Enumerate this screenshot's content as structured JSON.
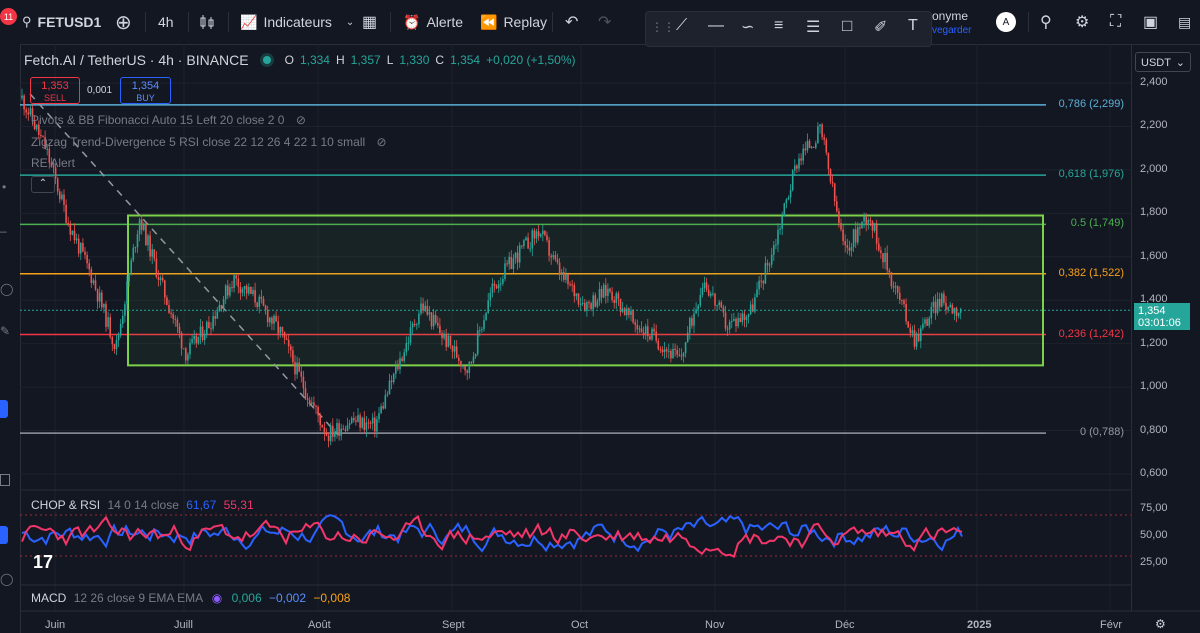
{
  "toolbar": {
    "notification_count": "11",
    "symbol": "FETUSD1",
    "interval": "4h",
    "indicators_label": "Indicateurs",
    "alert_label": "Alerte",
    "replay_label": "Replay",
    "account_name": "onyme",
    "account_sub": "vegarder",
    "avatar_letter": "A"
  },
  "chart_header": {
    "title": "Fetch.AI / TetherUS · 4h · BINANCE",
    "o_label": "O",
    "o_value": "1,334",
    "h_label": "H",
    "h_value": "1,357",
    "l_label": "L",
    "l_value": "1,330",
    "c_label": "C",
    "c_value": "1,354",
    "change": "+0,020 (+1,50%)",
    "sell_price": "1,353",
    "sell_label": "SELL",
    "spread": "0,001",
    "buy_price": "1,354",
    "buy_label": "BUY"
  },
  "indicators": [
    "Pivots & BB Fibonacci Auto 15 Left 20 close 2 0",
    "Zigzag Trend-Divergence 5 RSI close 22 12 26 4 22 1 10 small",
    "RE Alert"
  ],
  "price_axis": {
    "currency": "USDT",
    "ticks": [
      "2,400",
      "2,200",
      "2,000",
      "1,800",
      "1,600",
      "1,400",
      "1,200",
      "1,000",
      "0,800",
      "0,600"
    ],
    "current_price": "1,354",
    "countdown": "03:01:06"
  },
  "fib_levels": [
    {
      "label": "0,786 (2,299)",
      "value": 2.299,
      "color": "#5bb0d8"
    },
    {
      "label": "0,618 (1,976)",
      "value": 1.976,
      "color": "#26a69a"
    },
    {
      "label": "0.5 (1,749)",
      "value": 1.749,
      "color": "#4caf50"
    },
    {
      "label": "0,382 (1,522)",
      "value": 1.522,
      "color": "#f7a21b"
    },
    {
      "label": "0,236 (1,242)",
      "value": 1.242,
      "color": "#f23645"
    },
    {
      "label": "0 (0,788)",
      "value": 0.788,
      "color": "#9598a1"
    }
  ],
  "rsi_panel": {
    "label": "CHOP & RSI",
    "params": "14 0 14 close",
    "chop_value": "61,67",
    "rsi_value": "55,31",
    "ticks": [
      "75,00",
      "50,00",
      "25,00"
    ],
    "chop_color": "#2962ff",
    "rsi_color": "#f23669"
  },
  "macd_panel": {
    "label": "MACD",
    "params": "12 26 close 9 EMA EMA",
    "v1": "0,006",
    "v2": "−0,002",
    "v3": "−0,008"
  },
  "time_axis": [
    "Juin",
    "Juill",
    "Août",
    "Sept",
    "Oct",
    "Nov",
    "Déc",
    "2025",
    "Févr"
  ],
  "chart_data": {
    "type": "candlestick",
    "ylim": [
      0.6,
      2.4
    ],
    "x_categories": [
      "Juin",
      "Juill",
      "Août",
      "Sept",
      "Oct",
      "Nov",
      "Déc",
      "2025",
      "Févr"
    ],
    "price_path": [
      [
        "Juin",
        2.33
      ],
      [
        "Juin",
        2.1
      ],
      [
        "Juin",
        1.75
      ],
      [
        "Juin",
        1.5
      ],
      [
        "Juin",
        1.18
      ],
      [
        "Juill",
        1.78
      ],
      [
        "Juill",
        1.45
      ],
      [
        "Juill",
        1.15
      ],
      [
        "Juill",
        1.3
      ],
      [
        "Juill",
        1.5
      ],
      [
        "Juill",
        1.4
      ],
      [
        "Juill",
        1.25
      ],
      [
        "Août",
        1.0
      ],
      [
        "Août",
        0.78
      ],
      [
        "Août",
        0.85
      ],
      [
        "Août",
        0.82
      ],
      [
        "Août",
        1.1
      ],
      [
        "Août",
        1.38
      ],
      [
        "Sept",
        1.22
      ],
      [
        "Sept",
        1.08
      ],
      [
        "Sept",
        1.45
      ],
      [
        "Sept",
        1.6
      ],
      [
        "Oct",
        1.72
      ],
      [
        "Oct",
        1.5
      ],
      [
        "Oct",
        1.38
      ],
      [
        "Oct",
        1.45
      ],
      [
        "Oct",
        1.3
      ],
      [
        "Nov",
        1.22
      ],
      [
        "Nov",
        1.12
      ],
      [
        "Nov",
        1.5
      ],
      [
        "Nov",
        1.28
      ],
      [
        "Nov",
        1.35
      ],
      [
        "Nov",
        1.65
      ],
      [
        "Déc",
        2.05
      ],
      [
        "Déc",
        2.18
      ],
      [
        "Déc",
        1.62
      ],
      [
        "Déc",
        1.8
      ],
      [
        "Déc",
        1.5
      ],
      [
        "Déc",
        1.22
      ],
      [
        "Déc",
        1.4
      ],
      [
        "Déc",
        1.35
      ]
    ],
    "range_box": {
      "top": 1.79,
      "bottom": 1.1
    },
    "trendline": {
      "from": 2.35,
      "to": 0.78
    }
  }
}
